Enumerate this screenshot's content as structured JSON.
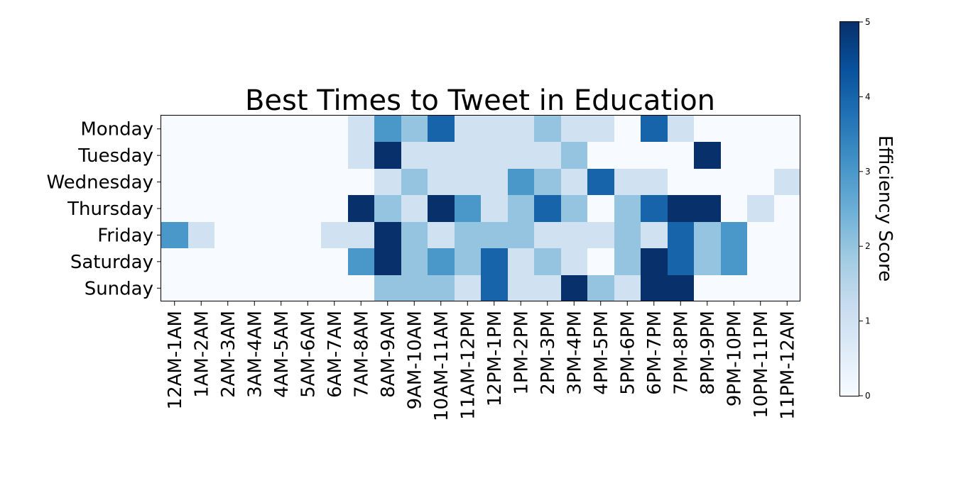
{
  "chart_data": {
    "type": "heatmap",
    "title": "Best Times to Tweet in Education",
    "rows": [
      "Monday",
      "Tuesday",
      "Wednesday",
      "Thursday",
      "Friday",
      "Saturday",
      "Sunday"
    ],
    "columns": [
      "12AM-1AM",
      "1AM-2AM",
      "2AM-3AM",
      "3AM-4AM",
      "4AM-5AM",
      "5AM-6AM",
      "6AM-7AM",
      "7AM-8AM",
      "8AM-9AM",
      "9AM-10AM",
      "10AM-11AM",
      "11AM-12PM",
      "12PM-1PM",
      "1PM-2PM",
      "2PM-3PM",
      "3PM-4PM",
      "4PM-5PM",
      "5PM-6PM",
      "6PM-7PM",
      "7PM-8PM",
      "8PM-9PM",
      "9PM-10PM",
      "10PM-11PM",
      "11PM-12AM"
    ],
    "values": [
      [
        0,
        0,
        0,
        0,
        0,
        0,
        0,
        1,
        3,
        2,
        4,
        1,
        1,
        1,
        2,
        1,
        1,
        0,
        4,
        1,
        0,
        0,
        0,
        0
      ],
      [
        0,
        0,
        0,
        0,
        0,
        0,
        0,
        1,
        5,
        1,
        1,
        1,
        1,
        1,
        1,
        2,
        0,
        0,
        0,
        0,
        5,
        0,
        0,
        0
      ],
      [
        0,
        0,
        0,
        0,
        0,
        0,
        0,
        0,
        1,
        2,
        1,
        1,
        1,
        3,
        2,
        1,
        4,
        1,
        1,
        0,
        0,
        0,
        0,
        1
      ],
      [
        0,
        0,
        0,
        0,
        0,
        0,
        0,
        5,
        2,
        1,
        5,
        3,
        1,
        2,
        4,
        2,
        0,
        2,
        4,
        5,
        5,
        0,
        1,
        0
      ],
      [
        3,
        1,
        0,
        0,
        0,
        0,
        1,
        1,
        5,
        2,
        1,
        2,
        2,
        2,
        1,
        1,
        1,
        2,
        1,
        4,
        2,
        3,
        0,
        0
      ],
      [
        0,
        0,
        0,
        0,
        0,
        0,
        0,
        3,
        5,
        2,
        3,
        2,
        4,
        1,
        2,
        1,
        0,
        2,
        5,
        4,
        2,
        3,
        0,
        0
      ],
      [
        0,
        0,
        0,
        0,
        0,
        0,
        0,
        0,
        2,
        2,
        2,
        1,
        4,
        1,
        1,
        5,
        2,
        1,
        5,
        5,
        0,
        0,
        0,
        0
      ]
    ],
    "colorbar": {
      "label": "Efficiency Score",
      "range": [
        0,
        5
      ],
      "ticks": [
        "0",
        "1",
        "2",
        "3",
        "4",
        "5"
      ],
      "colormap": "Blues"
    }
  }
}
